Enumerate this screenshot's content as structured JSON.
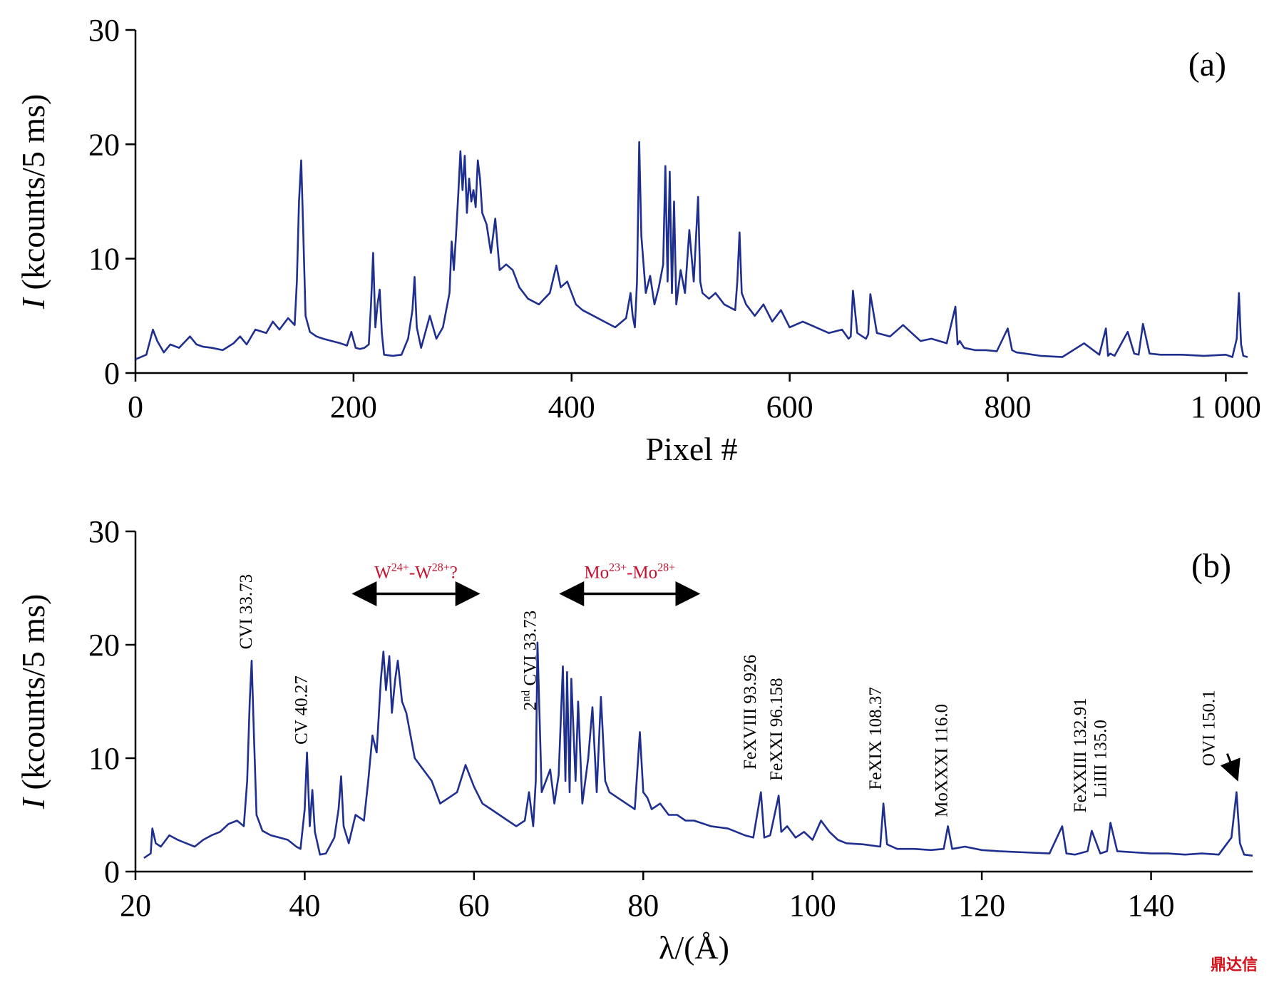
{
  "colors": {
    "series": "#1f2f8f",
    "annotation": "#c8102e",
    "axis": "#000000"
  },
  "watermark": "鼎达信",
  "chart_data": [
    {
      "type": "line",
      "panel_label": "(a)",
      "xlabel": "Pixel #",
      "ylabel": "I (kcounts/5 ms)",
      "ylabel_italic": "I",
      "ylabel_rest": " (kcounts/5 ms)",
      "xlim": [
        0,
        1020
      ],
      "ylim": [
        0,
        30
      ],
      "xticks": [
        0,
        200,
        400,
        600,
        800,
        1000
      ],
      "xtick_labels": [
        "0",
        "200",
        "400",
        "600",
        "800",
        "1 000"
      ],
      "yticks": [
        0,
        10,
        20,
        30
      ],
      "ytick_labels": [
        "0",
        "10",
        "20",
        "30"
      ],
      "grid": false,
      "series": [
        {
          "x": [
            0,
            10,
            16,
            20,
            26,
            32,
            40,
            50,
            56,
            62,
            70,
            80,
            90,
            96,
            102,
            110,
            120,
            126,
            132,
            140,
            146,
            148,
            150,
            152,
            154,
            156,
            160,
            166,
            172,
            180,
            188,
            194,
            198,
            202,
            206,
            210,
            214,
            216,
            218,
            220,
            222,
            224,
            226,
            228,
            236,
            244,
            250,
            254,
            256,
            258,
            262,
            270,
            276,
            282,
            288,
            290,
            292,
            294,
            296,
            298,
            300,
            302,
            304,
            306,
            308,
            310,
            312,
            314,
            316,
            318,
            322,
            326,
            330,
            334,
            340,
            346,
            352,
            360,
            370,
            380,
            386,
            390,
            396,
            404,
            410,
            420,
            430,
            440,
            450,
            454,
            456,
            458,
            460,
            462,
            464,
            468,
            472,
            476,
            480,
            484,
            486,
            488,
            490,
            492,
            494,
            496,
            500,
            504,
            508,
            512,
            516,
            518,
            520,
            526,
            532,
            540,
            550,
            552,
            554,
            556,
            560,
            568,
            576,
            584,
            592,
            600,
            612,
            624,
            636,
            648,
            654,
            656,
            658,
            662,
            670,
            672,
            674,
            680,
            692,
            704,
            712,
            720,
            730,
            744,
            752,
            754,
            756,
            760,
            770,
            780,
            790,
            800,
            804,
            806,
            808,
            816,
            830,
            850,
            870,
            884,
            890,
            892,
            894,
            898,
            910,
            916,
            920,
            924,
            930,
            940,
            960,
            980,
            1000,
            1006,
            1010,
            1012,
            1014,
            1016,
            1020
          ],
          "y": [
            1.2,
            1.6,
            3.8,
            2.8,
            1.8,
            2.5,
            2.2,
            3.2,
            2.5,
            2.3,
            2.2,
            2.0,
            2.6,
            3.2,
            2.5,
            3.8,
            3.5,
            4.5,
            3.8,
            4.8,
            4.2,
            8.0,
            15.0,
            18.6,
            12.0,
            5.0,
            3.6,
            3.2,
            3.0,
            2.8,
            2.6,
            2.4,
            3.6,
            2.2,
            2.1,
            2.2,
            2.5,
            6.0,
            10.5,
            4.0,
            6.0,
            7.3,
            3.5,
            1.6,
            1.5,
            1.6,
            3.0,
            5.5,
            8.4,
            4.0,
            2.2,
            5.0,
            3.0,
            4.0,
            7.0,
            11.5,
            9.0,
            12.0,
            15.5,
            19.4,
            16.0,
            19.0,
            14.0,
            17.0,
            15.0,
            16.0,
            14.5,
            18.6,
            17.0,
            14.0,
            13.0,
            10.5,
            13.5,
            9.0,
            9.5,
            9.0,
            7.5,
            6.5,
            6.0,
            7.0,
            9.4,
            7.5,
            8.0,
            6.0,
            5.5,
            5.0,
            4.5,
            4.0,
            4.8,
            7.0,
            5.0,
            4.0,
            8.0,
            20.2,
            12.0,
            7.0,
            8.5,
            6.0,
            7.5,
            9.5,
            18.1,
            8.0,
            17.6,
            7.0,
            15.0,
            6.0,
            9.0,
            7.0,
            12.5,
            8.0,
            15.4,
            8.0,
            7.0,
            6.5,
            7.0,
            6.0,
            5.5,
            8.0,
            12.3,
            7.0,
            6.0,
            5.0,
            6.0,
            4.5,
            5.5,
            4.0,
            4.5,
            4.0,
            3.5,
            3.8,
            3.0,
            3.2,
            7.2,
            3.5,
            3.0,
            3.4,
            6.9,
            3.5,
            3.2,
            4.2,
            3.5,
            2.8,
            3.0,
            2.6,
            5.8,
            2.5,
            2.8,
            2.2,
            2.0,
            2.0,
            1.9,
            3.9,
            2.0,
            1.9,
            1.8,
            1.7,
            1.5,
            1.4,
            2.6,
            1.6,
            3.9,
            1.5,
            1.7,
            1.5,
            3.6,
            1.7,
            1.6,
            4.3,
            1.7,
            1.6,
            1.6,
            1.5,
            1.6,
            1.4,
            3.0,
            7.0,
            2.5,
            1.5,
            1.4
          ]
        }
      ],
      "annotations": []
    },
    {
      "type": "line",
      "panel_label": "(b)",
      "xlabel": "λ/(Å)",
      "ylabel": "I (kcounts/5 ms)",
      "ylabel_italic": "I",
      "ylabel_rest": " (kcounts/5 ms)",
      "xlim": [
        20,
        152
      ],
      "ylim": [
        0,
        30
      ],
      "xticks": [
        20,
        40,
        60,
        80,
        100,
        120,
        140
      ],
      "xtick_labels": [
        "20",
        "40",
        "60",
        "80",
        "100",
        "120",
        "140"
      ],
      "yticks": [
        0,
        10,
        20,
        30
      ],
      "ytick_labels": [
        "0",
        "10",
        "20",
        "30"
      ],
      "grid": false,
      "series": [
        {
          "x": [
            21,
            21.8,
            22.0,
            22.4,
            23,
            24,
            25,
            26,
            27,
            28,
            29,
            30,
            31,
            32,
            32.8,
            33.2,
            33.5,
            33.73,
            34.0,
            34.3,
            35,
            36,
            37,
            38,
            39,
            39.5,
            40.0,
            40.27,
            40.6,
            40.9,
            41.2,
            41.8,
            42.5,
            43.5,
            44.0,
            44.3,
            44.6,
            45.2,
            46,
            47,
            47.5,
            48,
            48.5,
            49,
            49.3,
            49.6,
            50,
            50.3,
            50.7,
            51,
            51.5,
            52,
            53,
            54,
            55,
            56,
            57,
            58,
            59,
            60,
            61,
            62,
            63,
            64,
            65,
            66,
            66.5,
            67,
            67.3,
            67.5,
            68,
            68.5,
            69,
            69.5,
            70,
            70.5,
            70.8,
            71,
            71.3,
            71.5,
            72,
            72.3,
            72.8,
            73.5,
            74,
            74.5,
            75,
            75.5,
            76,
            77,
            78,
            79,
            79.6,
            80,
            80.5,
            81,
            82,
            83,
            84,
            85,
            86,
            88,
            90,
            92,
            93.0,
            93.9,
            94.3,
            95,
            96.0,
            96.3,
            97,
            98,
            99,
            100,
            101,
            102,
            103,
            104,
            106,
            108.0,
            108.37,
            108.8,
            110,
            112,
            114,
            115.5,
            116.0,
            116.5,
            118,
            120,
            122,
            125,
            128,
            129.5,
            130,
            131,
            132.5,
            133,
            134,
            134.8,
            135.2,
            136,
            138,
            140,
            142,
            144,
            146,
            148,
            149.5,
            150.1,
            150.5,
            151,
            152
          ],
          "y": [
            1.2,
            1.6,
            3.8,
            2.5,
            2.2,
            3.2,
            2.8,
            2.5,
            2.2,
            2.8,
            3.2,
            3.5,
            4.2,
            4.5,
            4.0,
            8.0,
            15.0,
            18.6,
            12.0,
            5.0,
            3.6,
            3.2,
            3.0,
            2.8,
            2.2,
            2.0,
            5.5,
            10.5,
            4.0,
            7.2,
            3.5,
            1.5,
            1.6,
            3.0,
            5.5,
            8.4,
            4.0,
            2.5,
            5.0,
            4.5,
            8.0,
            12.0,
            10.5,
            17.0,
            19.4,
            16.0,
            19.0,
            14.0,
            17.0,
            18.6,
            15.0,
            14.0,
            10.0,
            9.0,
            8.0,
            6.0,
            6.5,
            7.0,
            9.4,
            7.5,
            6.0,
            5.5,
            5.0,
            4.5,
            4.0,
            4.5,
            7.0,
            4.0,
            8.0,
            20.2,
            7.0,
            8.0,
            9.0,
            6.0,
            8.5,
            18.1,
            8.0,
            17.6,
            7.0,
            17.0,
            8.0,
            15.0,
            6.0,
            10.0,
            14.5,
            7.0,
            15.4,
            8.0,
            7.0,
            6.5,
            6.0,
            5.5,
            12.3,
            7.0,
            6.5,
            5.5,
            6.0,
            5.0,
            5.0,
            4.5,
            4.5,
            4.0,
            3.8,
            3.2,
            3.0,
            7.0,
            3.0,
            3.2,
            6.7,
            3.5,
            4.0,
            3.0,
            3.5,
            2.8,
            4.5,
            3.5,
            2.8,
            2.5,
            2.4,
            2.2,
            6.0,
            2.4,
            2.0,
            2.0,
            1.9,
            2.0,
            4.0,
            2.0,
            2.2,
            1.9,
            1.8,
            1.7,
            1.6,
            4.0,
            1.6,
            1.5,
            1.8,
            3.6,
            1.6,
            1.8,
            4.3,
            1.8,
            1.7,
            1.6,
            1.6,
            1.5,
            1.6,
            1.5,
            3.0,
            7.0,
            2.5,
            1.5,
            1.4
          ]
        }
      ],
      "annotations": [
        {
          "text": "CVI 33.73",
          "x": 33.73,
          "y": 19.6,
          "rotate": true,
          "color": "black"
        },
        {
          "text": "CV 40.27",
          "x": 40.27,
          "y": 11.2,
          "rotate": true,
          "color": "black"
        },
        {
          "text": "2nd CVI 33.73",
          "sup_prefix": "2",
          "sup": "nd",
          "rest": " CVI 33.73",
          "x": 67.3,
          "y": 14.2,
          "rotate": true,
          "color": "black"
        },
        {
          "text": "FeXVIII 93.926",
          "x": 93.3,
          "y": 9.0,
          "rotate": true,
          "color": "black"
        },
        {
          "text": "FeXXI 96.158",
          "x": 96.4,
          "y": 8.0,
          "rotate": true,
          "color": "black"
        },
        {
          "text": "FeXIX 108.37",
          "x": 108.1,
          "y": 7.2,
          "rotate": true,
          "color": "black"
        },
        {
          "text": "MoXXXI 116.0",
          "x": 115.9,
          "y": 4.8,
          "rotate": true,
          "color": "black"
        },
        {
          "text": "FeXXIII 132.91",
          "x": 132.3,
          "y": 5.2,
          "rotate": true,
          "color": "black"
        },
        {
          "text": "LiIII 135.0",
          "x": 134.7,
          "y": 6.5,
          "rotate": true,
          "color": "black"
        },
        {
          "text": "OVI 150.1",
          "x": 147.5,
          "y": 9.3,
          "rotate": true,
          "color": "black"
        }
      ],
      "regions": [
        {
          "label": "W24+-W28+?",
          "x_start": 44.8,
          "x_end": 61.5,
          "y": 24.5,
          "color": "red"
        },
        {
          "label": "Mo23+-Mo28+",
          "x_start": 69.3,
          "x_end": 87.5,
          "y": 24.5,
          "color": "red"
        }
      ]
    }
  ]
}
